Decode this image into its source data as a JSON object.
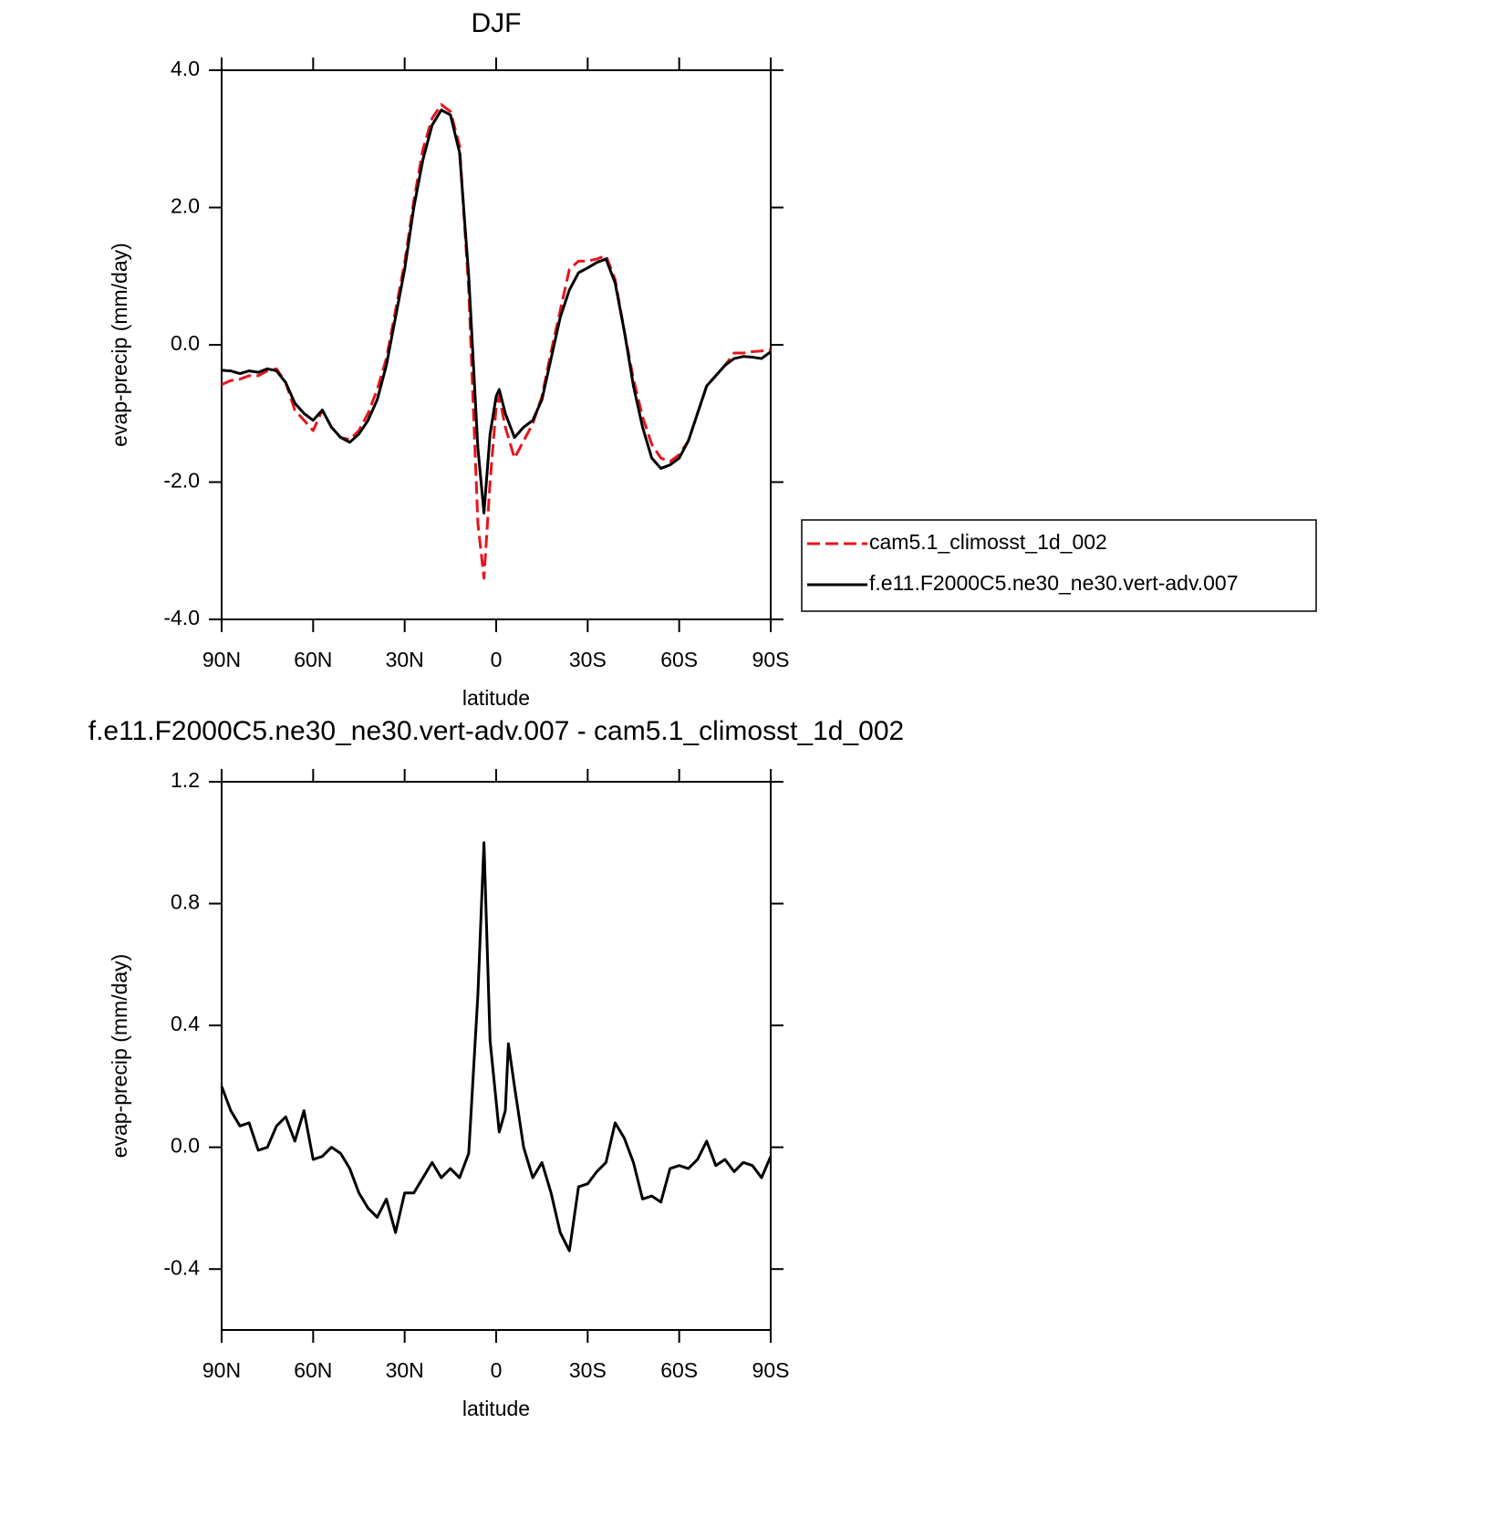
{
  "chart_data": [
    {
      "type": "line",
      "title": "DJF",
      "xlabel": "latitude",
      "ylabel": "evap-precip (mm/day)",
      "x": [
        90,
        87,
        84,
        81,
        78,
        75,
        72,
        69,
        66,
        63,
        60,
        57,
        54,
        51,
        48,
        45,
        42,
        39,
        36,
        33,
        30,
        27,
        24,
        21,
        18,
        15,
        12,
        9,
        6,
        4,
        2,
        0,
        -1,
        -3,
        -6,
        -9,
        -12,
        -15,
        -18,
        -21,
        -24,
        -27,
        -30,
        -33,
        -36,
        -39,
        -42,
        -45,
        -48,
        -51,
        -54,
        -57,
        -60,
        -63,
        -66,
        -69,
        -72,
        -75,
        -78,
        -81,
        -84,
        -87,
        -90
      ],
      "xlim": [
        90,
        -90
      ],
      "xticks": [
        {
          "value": 90,
          "label": "90N"
        },
        {
          "value": 60,
          "label": "60N"
        },
        {
          "value": 30,
          "label": "30N"
        },
        0,
        {
          "value": -30,
          "label": "30S"
        },
        {
          "value": -60,
          "label": "60S"
        },
        {
          "value": -90,
          "label": "90S"
        }
      ],
      "ylim": [
        -4,
        4
      ],
      "yticks": [
        {
          "value": -4,
          "label": "-4.0"
        },
        {
          "value": -2,
          "label": "-2.0"
        },
        {
          "value": 0,
          "label": "0.0"
        },
        {
          "value": 2,
          "label": "2.0"
        },
        {
          "value": 4,
          "label": "4.0"
        }
      ],
      "legend": "right",
      "series": [
        {
          "name": "cam5.1_climosst_1d_002",
          "color": "#e8141c",
          "dash": true,
          "values": [
            -0.58,
            -0.52,
            -0.5,
            -0.45,
            -0.45,
            -0.38,
            -0.35,
            -0.55,
            -0.95,
            -1.1,
            -1.25,
            -0.95,
            -1.2,
            -1.35,
            -1.38,
            -1.25,
            -1.0,
            -0.65,
            -0.2,
            0.5,
            1.2,
            2.1,
            2.85,
            3.3,
            3.5,
            3.4,
            2.9,
            0.8,
            -2.6,
            -3.4,
            -2.0,
            -0.9,
            -0.75,
            -1.2,
            -1.65,
            -1.4,
            -1.15,
            -0.75,
            -0.1,
            0.5,
            1.1,
            1.22,
            1.22,
            1.25,
            1.3,
            0.95,
            0.2,
            -0.5,
            -1.05,
            -1.45,
            -1.65,
            -1.7,
            -1.6,
            -1.4,
            -1.0,
            -0.6,
            -0.45,
            -0.3,
            -0.12,
            -0.12,
            -0.1,
            -0.09,
            -0.07
          ]
        },
        {
          "name": "f.e11.F2000C5.ne30_ne30.vert-adv.007",
          "color": "#000000",
          "dash": false,
          "values": [
            -0.37,
            -0.38,
            -0.42,
            -0.38,
            -0.4,
            -0.35,
            -0.38,
            -0.55,
            -0.85,
            -1.0,
            -1.1,
            -0.95,
            -1.2,
            -1.35,
            -1.42,
            -1.3,
            -1.1,
            -0.8,
            -0.3,
            0.4,
            1.1,
            2.0,
            2.7,
            3.2,
            3.42,
            3.35,
            2.8,
            1.0,
            -1.5,
            -2.45,
            -1.3,
            -0.75,
            -0.65,
            -1.0,
            -1.35,
            -1.2,
            -1.1,
            -0.8,
            -0.2,
            0.4,
            0.8,
            1.05,
            1.12,
            1.2,
            1.25,
            0.9,
            0.2,
            -0.6,
            -1.2,
            -1.65,
            -1.8,
            -1.75,
            -1.65,
            -1.4,
            -1.0,
            -0.6,
            -0.45,
            -0.3,
            -0.2,
            -0.17,
            -0.18,
            -0.2,
            -0.1
          ]
        }
      ]
    },
    {
      "type": "line",
      "title": "f.e11.F2000C5.ne30_ne30.vert-adv.007 - cam5.1_climosst_1d_002",
      "xlabel": "latitude",
      "ylabel": "evap-precip (mm/day)",
      "x": [
        90,
        87,
        84,
        81,
        78,
        75,
        72,
        69,
        66,
        63,
        60,
        57,
        54,
        51,
        48,
        45,
        42,
        39,
        36,
        33,
        30,
        27,
        24,
        21,
        18,
        15,
        12,
        9,
        6,
        4,
        2,
        0,
        -1,
        -3,
        -4,
        -6,
        -9,
        -12,
        -15,
        -18,
        -21,
        -24,
        -27,
        -30,
        -33,
        -36,
        -39,
        -42,
        -45,
        -48,
        -51,
        -54,
        -57,
        -60,
        -63,
        -66,
        -69,
        -72,
        -75,
        -78,
        -81,
        -84,
        -87,
        -90
      ],
      "xlim": [
        90,
        -90
      ],
      "xticks": [
        {
          "value": 90,
          "label": "90N"
        },
        {
          "value": 60,
          "label": "60N"
        },
        {
          "value": 30,
          "label": "30N"
        },
        0,
        {
          "value": -30,
          "label": "30S"
        },
        {
          "value": -60,
          "label": "60S"
        },
        {
          "value": -90,
          "label": "90S"
        }
      ],
      "ylim": [
        -0.6,
        1.2
      ],
      "yticks": [
        -0.4,
        {
          "value": 0,
          "label": "0.0"
        },
        0.4,
        0.8,
        1.2
      ],
      "series": [
        {
          "color": "#000000",
          "dash": false,
          "values": [
            0.2,
            0.12,
            0.07,
            0.08,
            -0.01,
            0.0,
            0.07,
            0.1,
            0.02,
            0.12,
            -0.04,
            -0.03,
            0.0,
            -0.02,
            -0.07,
            -0.15,
            -0.2,
            -0.23,
            -0.17,
            -0.28,
            -0.15,
            -0.15,
            -0.1,
            -0.05,
            -0.1,
            -0.07,
            -0.1,
            -0.02,
            0.5,
            1.0,
            0.35,
            0.15,
            0.05,
            0.12,
            0.34,
            0.2,
            0.0,
            -0.1,
            -0.05,
            -0.15,
            -0.28,
            -0.34,
            -0.13,
            -0.12,
            -0.08,
            -0.05,
            0.08,
            0.03,
            -0.05,
            -0.17,
            -0.16,
            -0.18,
            -0.07,
            -0.06,
            -0.07,
            -0.04,
            0.02,
            -0.06,
            -0.04,
            -0.08,
            -0.05,
            -0.06,
            -0.1,
            -0.03
          ]
        }
      ]
    }
  ]
}
